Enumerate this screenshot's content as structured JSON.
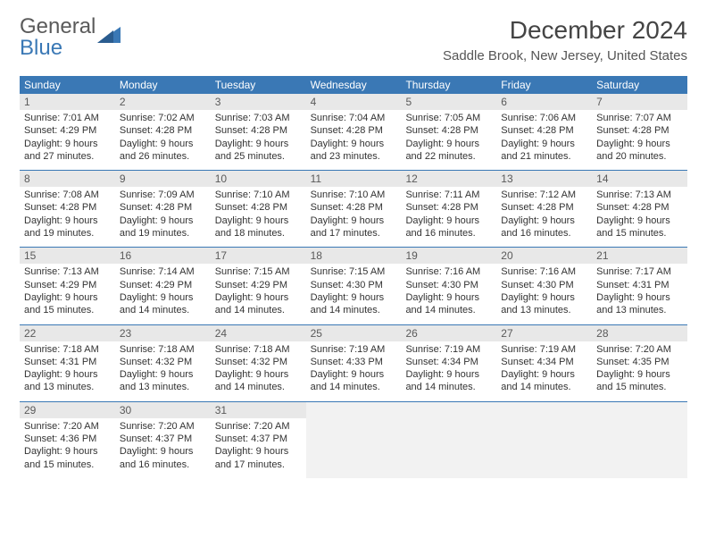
{
  "logo": {
    "line1": "General",
    "line2": "Blue"
  },
  "title": "December 2024",
  "location": "Saddle Brook, New Jersey, United States",
  "colors": {
    "header_bg": "#3a78b5",
    "header_text": "#ffffff",
    "daynum_bg": "#e8e8e8",
    "rule": "#3a78b5",
    "logo_blue": "#3a78b5",
    "logo_gray": "#5a5a5a"
  },
  "days_of_week": [
    "Sunday",
    "Monday",
    "Tuesday",
    "Wednesday",
    "Thursday",
    "Friday",
    "Saturday"
  ],
  "weeks": [
    [
      {
        "n": "1",
        "sr": "Sunrise: 7:01 AM",
        "ss": "Sunset: 4:29 PM",
        "d1": "Daylight: 9 hours",
        "d2": "and 27 minutes."
      },
      {
        "n": "2",
        "sr": "Sunrise: 7:02 AM",
        "ss": "Sunset: 4:28 PM",
        "d1": "Daylight: 9 hours",
        "d2": "and 26 minutes."
      },
      {
        "n": "3",
        "sr": "Sunrise: 7:03 AM",
        "ss": "Sunset: 4:28 PM",
        "d1": "Daylight: 9 hours",
        "d2": "and 25 minutes."
      },
      {
        "n": "4",
        "sr": "Sunrise: 7:04 AM",
        "ss": "Sunset: 4:28 PM",
        "d1": "Daylight: 9 hours",
        "d2": "and 23 minutes."
      },
      {
        "n": "5",
        "sr": "Sunrise: 7:05 AM",
        "ss": "Sunset: 4:28 PM",
        "d1": "Daylight: 9 hours",
        "d2": "and 22 minutes."
      },
      {
        "n": "6",
        "sr": "Sunrise: 7:06 AM",
        "ss": "Sunset: 4:28 PM",
        "d1": "Daylight: 9 hours",
        "d2": "and 21 minutes."
      },
      {
        "n": "7",
        "sr": "Sunrise: 7:07 AM",
        "ss": "Sunset: 4:28 PM",
        "d1": "Daylight: 9 hours",
        "d2": "and 20 minutes."
      }
    ],
    [
      {
        "n": "8",
        "sr": "Sunrise: 7:08 AM",
        "ss": "Sunset: 4:28 PM",
        "d1": "Daylight: 9 hours",
        "d2": "and 19 minutes."
      },
      {
        "n": "9",
        "sr": "Sunrise: 7:09 AM",
        "ss": "Sunset: 4:28 PM",
        "d1": "Daylight: 9 hours",
        "d2": "and 19 minutes."
      },
      {
        "n": "10",
        "sr": "Sunrise: 7:10 AM",
        "ss": "Sunset: 4:28 PM",
        "d1": "Daylight: 9 hours",
        "d2": "and 18 minutes."
      },
      {
        "n": "11",
        "sr": "Sunrise: 7:10 AM",
        "ss": "Sunset: 4:28 PM",
        "d1": "Daylight: 9 hours",
        "d2": "and 17 minutes."
      },
      {
        "n": "12",
        "sr": "Sunrise: 7:11 AM",
        "ss": "Sunset: 4:28 PM",
        "d1": "Daylight: 9 hours",
        "d2": "and 16 minutes."
      },
      {
        "n": "13",
        "sr": "Sunrise: 7:12 AM",
        "ss": "Sunset: 4:28 PM",
        "d1": "Daylight: 9 hours",
        "d2": "and 16 minutes."
      },
      {
        "n": "14",
        "sr": "Sunrise: 7:13 AM",
        "ss": "Sunset: 4:28 PM",
        "d1": "Daylight: 9 hours",
        "d2": "and 15 minutes."
      }
    ],
    [
      {
        "n": "15",
        "sr": "Sunrise: 7:13 AM",
        "ss": "Sunset: 4:29 PM",
        "d1": "Daylight: 9 hours",
        "d2": "and 15 minutes."
      },
      {
        "n": "16",
        "sr": "Sunrise: 7:14 AM",
        "ss": "Sunset: 4:29 PM",
        "d1": "Daylight: 9 hours",
        "d2": "and 14 minutes."
      },
      {
        "n": "17",
        "sr": "Sunrise: 7:15 AM",
        "ss": "Sunset: 4:29 PM",
        "d1": "Daylight: 9 hours",
        "d2": "and 14 minutes."
      },
      {
        "n": "18",
        "sr": "Sunrise: 7:15 AM",
        "ss": "Sunset: 4:30 PM",
        "d1": "Daylight: 9 hours",
        "d2": "and 14 minutes."
      },
      {
        "n": "19",
        "sr": "Sunrise: 7:16 AM",
        "ss": "Sunset: 4:30 PM",
        "d1": "Daylight: 9 hours",
        "d2": "and 14 minutes."
      },
      {
        "n": "20",
        "sr": "Sunrise: 7:16 AM",
        "ss": "Sunset: 4:30 PM",
        "d1": "Daylight: 9 hours",
        "d2": "and 13 minutes."
      },
      {
        "n": "21",
        "sr": "Sunrise: 7:17 AM",
        "ss": "Sunset: 4:31 PM",
        "d1": "Daylight: 9 hours",
        "d2": "and 13 minutes."
      }
    ],
    [
      {
        "n": "22",
        "sr": "Sunrise: 7:18 AM",
        "ss": "Sunset: 4:31 PM",
        "d1": "Daylight: 9 hours",
        "d2": "and 13 minutes."
      },
      {
        "n": "23",
        "sr": "Sunrise: 7:18 AM",
        "ss": "Sunset: 4:32 PM",
        "d1": "Daylight: 9 hours",
        "d2": "and 13 minutes."
      },
      {
        "n": "24",
        "sr": "Sunrise: 7:18 AM",
        "ss": "Sunset: 4:32 PM",
        "d1": "Daylight: 9 hours",
        "d2": "and 14 minutes."
      },
      {
        "n": "25",
        "sr": "Sunrise: 7:19 AM",
        "ss": "Sunset: 4:33 PM",
        "d1": "Daylight: 9 hours",
        "d2": "and 14 minutes."
      },
      {
        "n": "26",
        "sr": "Sunrise: 7:19 AM",
        "ss": "Sunset: 4:34 PM",
        "d1": "Daylight: 9 hours",
        "d2": "and 14 minutes."
      },
      {
        "n": "27",
        "sr": "Sunrise: 7:19 AM",
        "ss": "Sunset: 4:34 PM",
        "d1": "Daylight: 9 hours",
        "d2": "and 14 minutes."
      },
      {
        "n": "28",
        "sr": "Sunrise: 7:20 AM",
        "ss": "Sunset: 4:35 PM",
        "d1": "Daylight: 9 hours",
        "d2": "and 15 minutes."
      }
    ],
    [
      {
        "n": "29",
        "sr": "Sunrise: 7:20 AM",
        "ss": "Sunset: 4:36 PM",
        "d1": "Daylight: 9 hours",
        "d2": "and 15 minutes."
      },
      {
        "n": "30",
        "sr": "Sunrise: 7:20 AM",
        "ss": "Sunset: 4:37 PM",
        "d1": "Daylight: 9 hours",
        "d2": "and 16 minutes."
      },
      {
        "n": "31",
        "sr": "Sunrise: 7:20 AM",
        "ss": "Sunset: 4:37 PM",
        "d1": "Daylight: 9 hours",
        "d2": "and 17 minutes."
      },
      null,
      null,
      null,
      null
    ]
  ]
}
